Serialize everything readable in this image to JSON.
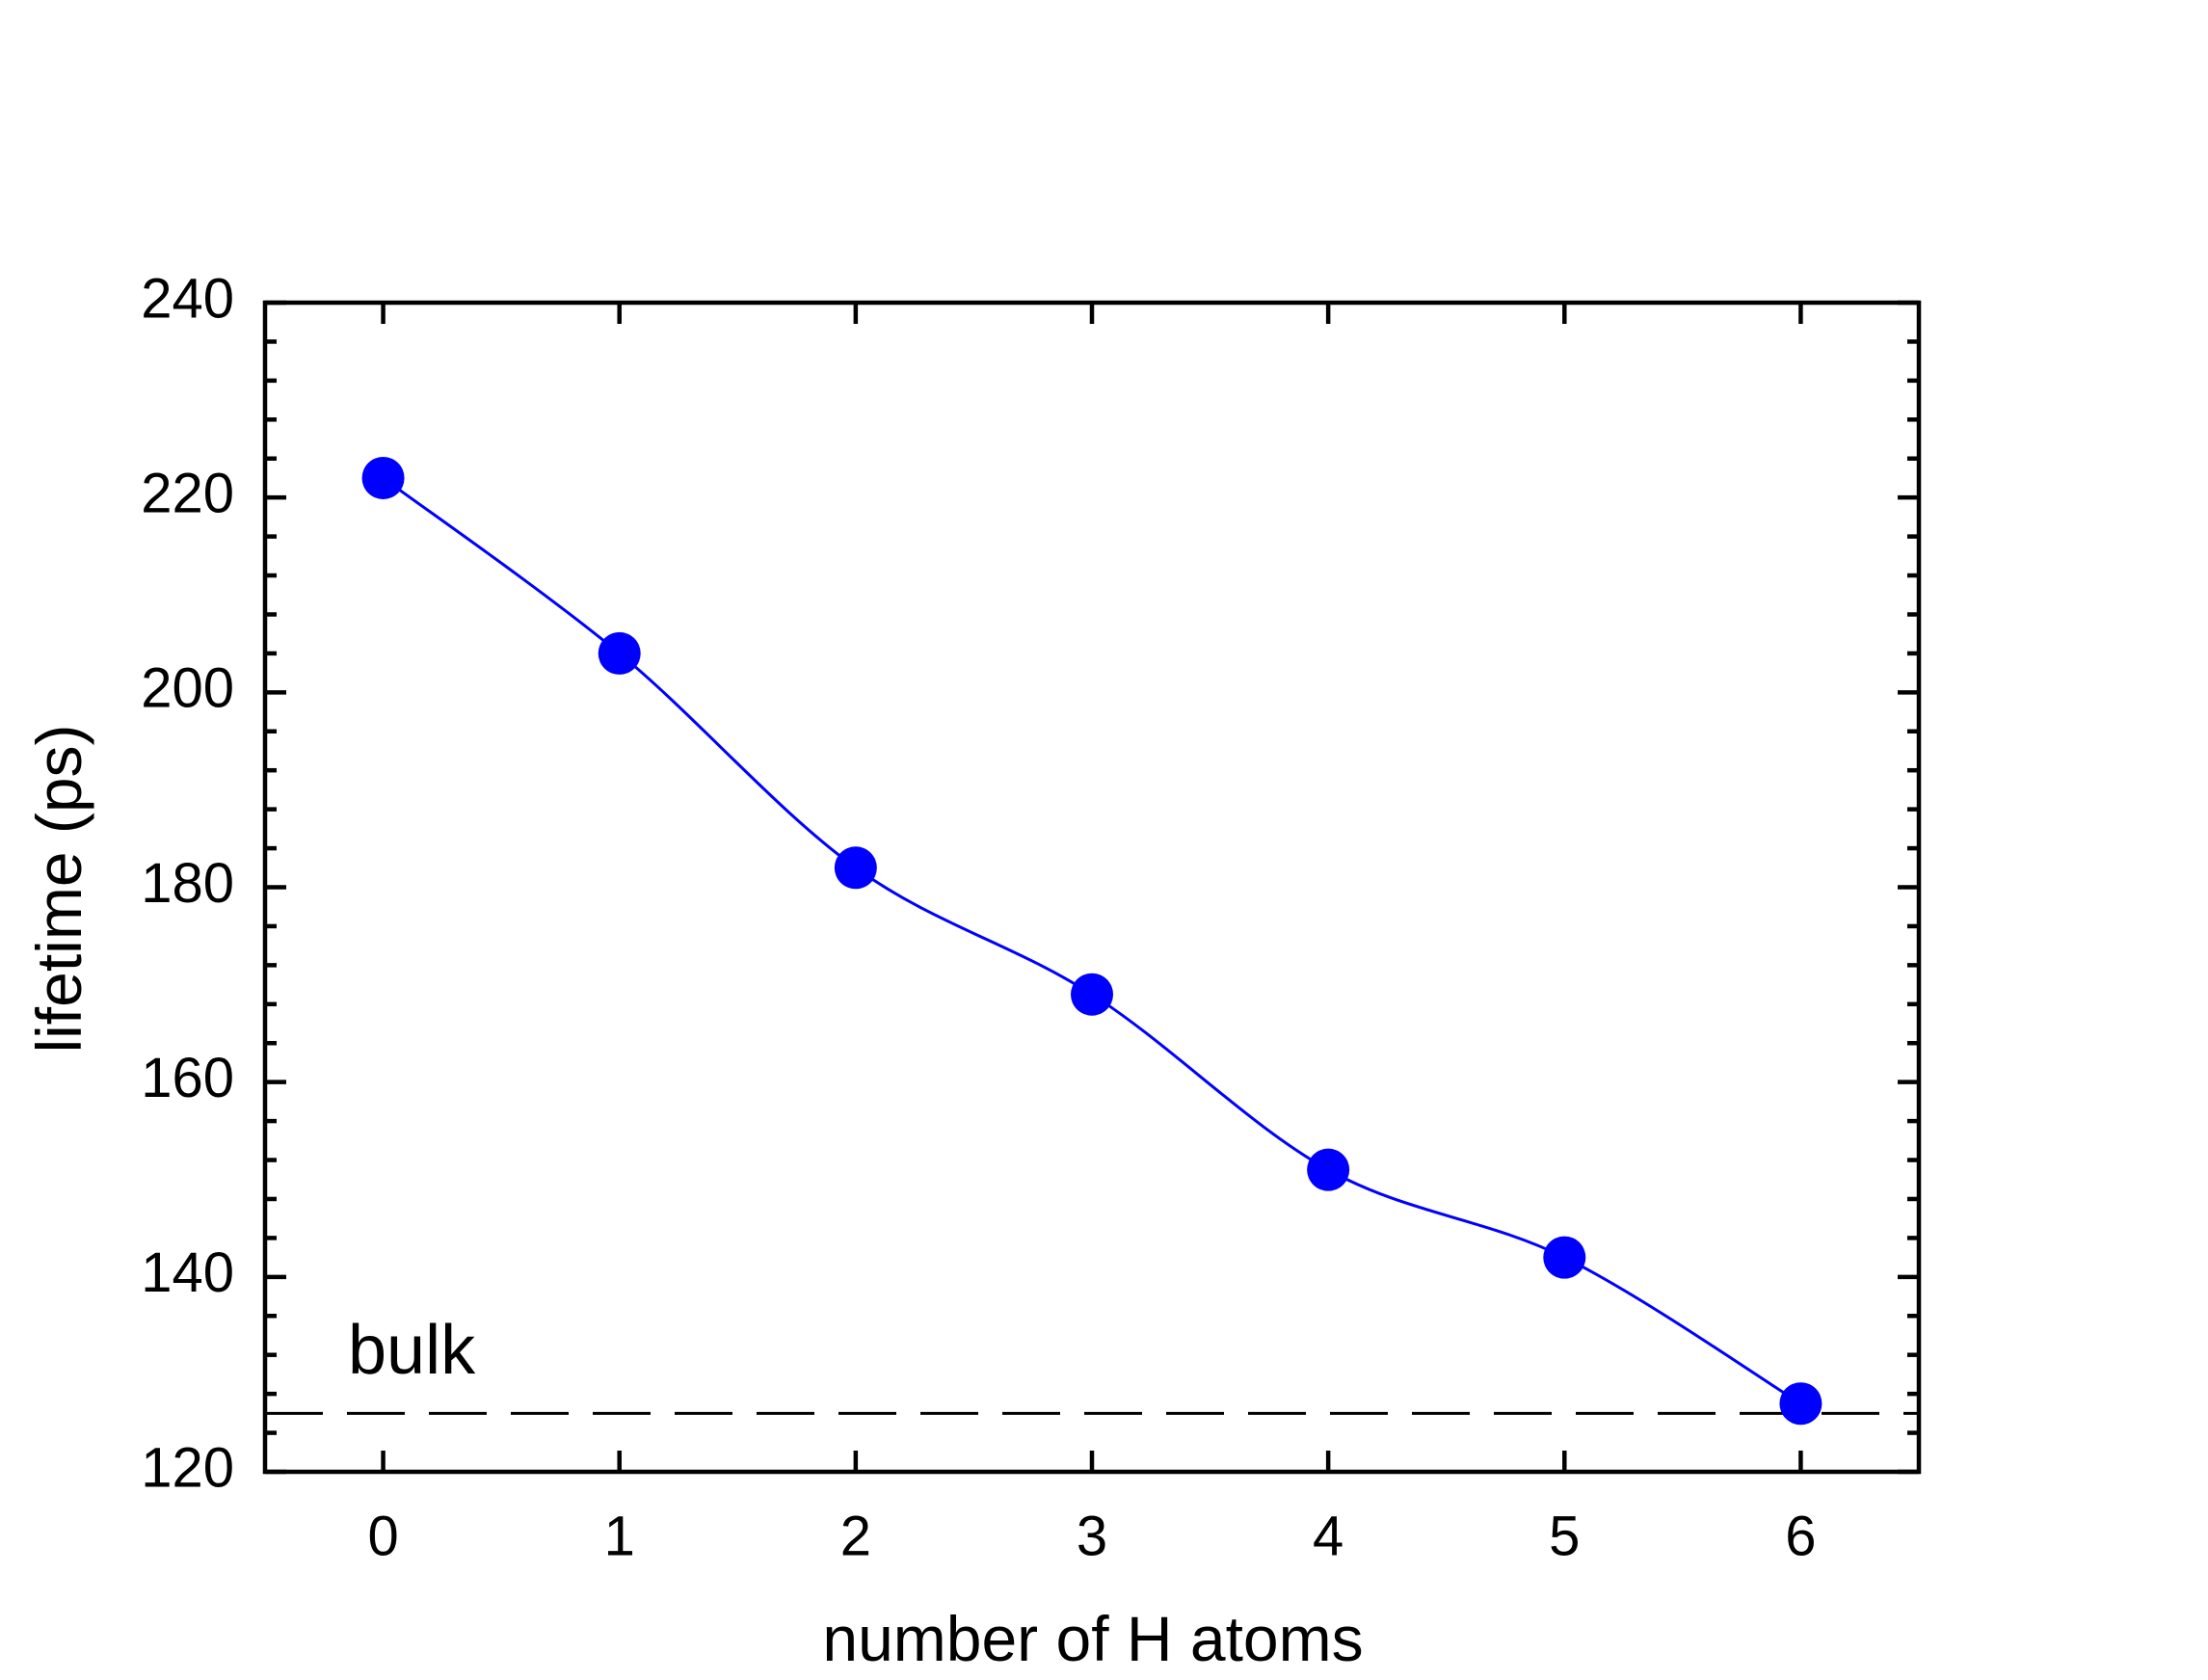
{
  "chart_data": {
    "type": "line",
    "x_label": "number of H atoms",
    "y_label": "lifetime (ps)",
    "x": [
      0,
      1,
      2,
      3,
      4,
      5,
      6
    ],
    "series": [
      {
        "color": "#0000ff",
        "values": [
          222,
          204,
          182,
          169,
          151,
          142,
          127
        ]
      }
    ],
    "xlim": [
      -0.5,
      6.5
    ],
    "xticks": [
      0,
      1,
      2,
      3,
      4,
      5,
      6
    ],
    "ylim": [
      120,
      240
    ],
    "yticks": [
      120,
      140,
      160,
      180,
      200,
      220,
      240
    ],
    "reference_line": {
      "value": 126,
      "label": "bulk"
    }
  }
}
